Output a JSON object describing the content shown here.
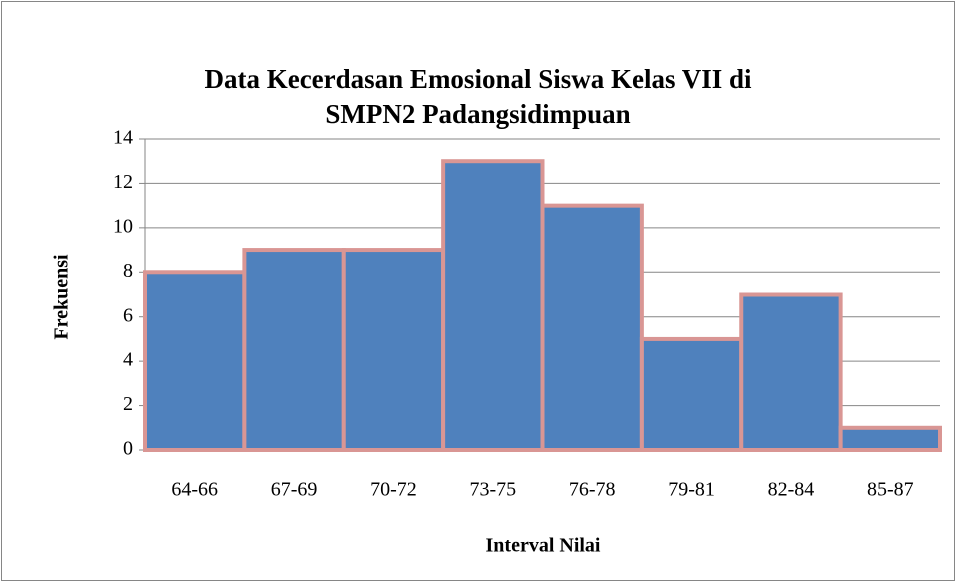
{
  "chart_data": {
    "type": "bar",
    "title": "Data Kecerdasan Emosional Siswa Kelas VII di SMPN2 Padangsidimpuan",
    "x_label": "Interval Nilai",
    "y_label": "Frekuensi",
    "categories": [
      "64-66",
      "67-69",
      "70-72",
      "73-75",
      "76-78",
      "79-81",
      "82-84",
      "85-87"
    ],
    "values": [
      8,
      9,
      9,
      13,
      11,
      5,
      7,
      1
    ],
    "color": "#4f81bd",
    "edge_color": "#d99694",
    "ylim": [
      0,
      14
    ],
    "yticks": [
      0,
      2,
      4,
      6,
      8,
      10,
      12,
      14
    ],
    "grid": true
  }
}
